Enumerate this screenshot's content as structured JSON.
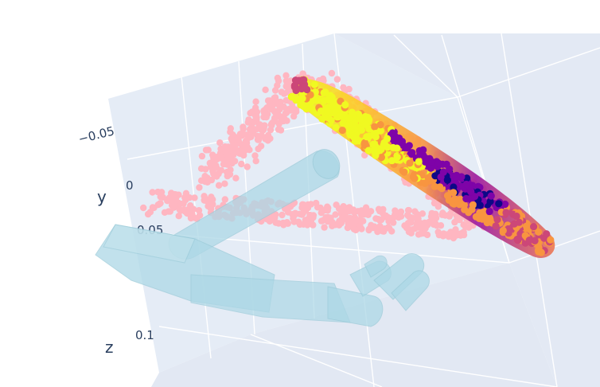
{
  "chart_data": {
    "type": "scatter3d",
    "axes": {
      "y": {
        "label": "y",
        "ticks": [
          {
            "value": -0.05,
            "label": "−0.05"
          },
          {
            "value": 0,
            "label": "0"
          },
          {
            "value": 0.05,
            "label": "0.05"
          }
        ]
      },
      "z": {
        "label": "z",
        "ticks": [
          {
            "value": 0.1,
            "label": "0.1"
          }
        ]
      }
    },
    "grid": true,
    "scene_background": "#e5ecf6",
    "gridline_color": "#ffffff",
    "traces": [
      {
        "kind": "scatter3d",
        "role": "pink-point-cloud",
        "color": "#ffb6c1"
      },
      {
        "kind": "scatter3d",
        "role": "colored-point-cloud",
        "colorscale": "plasma",
        "colors": [
          "#0d0887",
          "#7e03a8",
          "#cc4778",
          "#f89540",
          "#f0f921"
        ]
      },
      {
        "kind": "mesh3d",
        "role": "hand-mesh",
        "color": "#add8e6",
        "opacity": 0.75
      }
    ]
  }
}
